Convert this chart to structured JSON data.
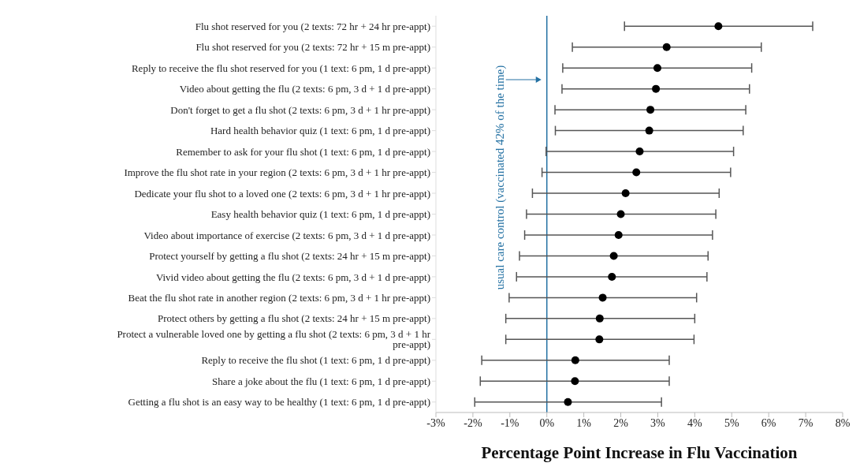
{
  "chart_data": {
    "type": "scatter",
    "orientation": "horizontal",
    "marker": "circle",
    "xlabel": "Percentage Point Increase in Flu Vaccination",
    "categories": [
      "Flu shot reserved for you (2 texts: 72 hr + 24 hr pre-appt)",
      "Flu shot reserved for you (2 texts: 72 hr + 15 m pre-appt)",
      "Reply to receive the flu shot reserved for you (1 text: 6 pm, 1 d pre-appt)",
      "Video about getting the flu (2 texts: 6 pm, 3 d + 1 d pre-appt)",
      "Don't forget to get a flu shot (2 texts: 6 pm, 3 d + 1 hr pre-appt)",
      "Hard health behavior quiz (1 text: 6 pm, 1 d pre-appt)",
      "Remember to ask for your flu shot (1 text: 6 pm, 1 d pre-appt)",
      "Improve the flu shot rate in your region (2 texts: 6 pm, 3 d + 1 hr pre-appt)",
      "Dedicate your flu shot to a loved one (2 texts: 6 pm, 3 d + 1 hr pre-appt)",
      "Easy health behavior quiz (1 text: 6 pm, 1 d pre-appt)",
      "Video about importance of exercise (2 texts: 6 pm, 3 d + 1 d pre-appt)",
      "Protect yourself by getting a flu shot (2 texts: 24 hr + 15 m pre-appt)",
      "Vivid video about getting the flu (2 texts: 6 pm, 3 d + 1 d pre-appt)",
      "Beat the flu shot rate in another region (2 texts: 6 pm, 3 d + 1 hr pre-appt)",
      "Protect others by getting a flu shot (2 texts: 24 hr + 15 m pre-appt)",
      "Protect a vulnerable loved one by getting a flu shot (2 texts: 6 pm, 3 d + 1 hr pre-appt)",
      "Reply to receive the flu shot (1 text: 6 pm, 1 d pre-appt)",
      "Share a joke about the flu (1 text: 6 pm, 1 d pre-appt)",
      "Getting a flu shot is an easy way to be healthy (1 text: 6 pm, 1 d pre-appt)"
    ],
    "series": [
      {
        "color": "#000000",
        "values": [
          4.64,
          3.24,
          2.99,
          2.95,
          2.8,
          2.77,
          2.51,
          2.42,
          2.13,
          2.0,
          1.94,
          1.81,
          1.76,
          1.51,
          1.43,
          1.42,
          0.77,
          0.76,
          0.57
        ],
        "errors": [
          [
            2.1,
            7.19
          ],
          [
            0.69,
            5.8
          ],
          [
            0.43,
            5.54
          ],
          [
            0.41,
            5.48
          ],
          [
            0.22,
            5.38
          ],
          [
            0.23,
            5.31
          ],
          [
            -0.02,
            5.05
          ],
          [
            -0.13,
            4.97
          ],
          [
            -0.39,
            4.66
          ],
          [
            -0.55,
            4.57
          ],
          [
            -0.6,
            4.48
          ],
          [
            -0.74,
            4.36
          ],
          [
            -0.82,
            4.33
          ],
          [
            -1.02,
            4.05
          ],
          [
            -1.11,
            4.0
          ],
          [
            -1.11,
            3.98
          ],
          [
            -1.76,
            3.31
          ],
          [
            -1.8,
            3.31
          ],
          [
            -1.95,
            3.1
          ]
        ]
      }
    ],
    "xlim": [
      -3,
      8
    ],
    "xticks": [
      {
        "value": -3,
        "label": "-3%"
      },
      {
        "value": -2,
        "label": "-2%"
      },
      {
        "value": -1,
        "label": "-1%"
      },
      {
        "value": 0,
        "label": "0%"
      },
      {
        "value": 1,
        "label": "1%"
      },
      {
        "value": 2,
        "label": "2%"
      },
      {
        "value": 3,
        "label": "3%"
      },
      {
        "value": 4,
        "label": "4%"
      },
      {
        "value": 5,
        "label": "5%"
      },
      {
        "value": 6,
        "label": "6%"
      },
      {
        "value": 7,
        "label": "7%"
      },
      {
        "value": 8,
        "label": "8%"
      }
    ],
    "ref_lines": [
      {
        "axis": "x",
        "value": 0,
        "label": "usual care control (vaccinated 42% of the time)",
        "color": "#2471a3"
      }
    ]
  }
}
